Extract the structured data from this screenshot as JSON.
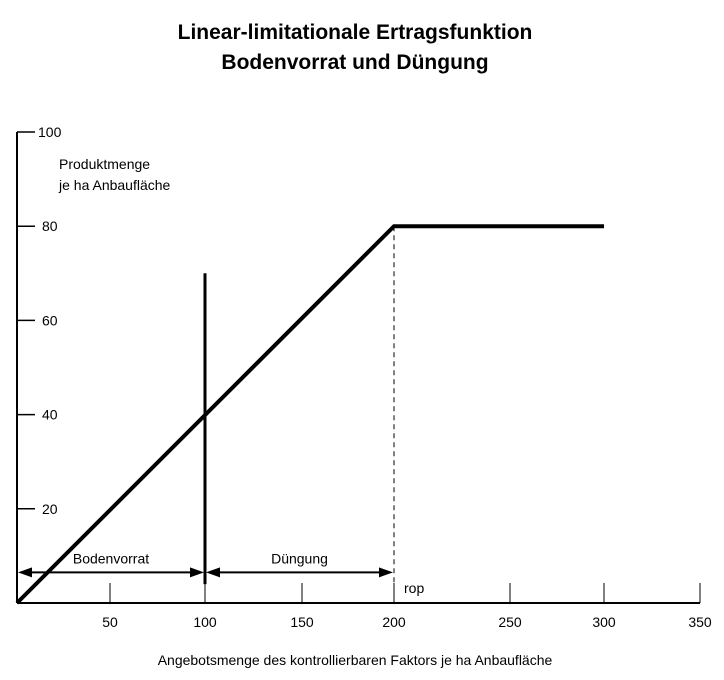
{
  "chart_data": {
    "type": "line",
    "title": [
      "Linear-limitationale Ertragsfunktion",
      "Bodenvorrat und Düngung"
    ],
    "xlabel": "Angebotsmenge des kontrollierbaren Faktors je ha Anbaufläche",
    "ylabel": [
      "Produktmenge",
      "je ha Anbaufläche"
    ],
    "xlim": [
      0,
      350
    ],
    "ylim": [
      0,
      100
    ],
    "x_ticks": [
      50,
      100,
      150,
      200,
      250,
      300,
      350
    ],
    "y_ticks": [
      20,
      40,
      60,
      80,
      100
    ],
    "grid": false,
    "series": [
      {
        "x": [
          0,
          200,
          300
        ],
        "y": [
          0,
          80,
          80
        ]
      }
    ],
    "annotations": {
      "vertical_line": {
        "x": 100,
        "y": [
          4,
          70
        ]
      },
      "dashed_line": {
        "x": 200,
        "y": [
          0,
          80
        ]
      },
      "ranges": [
        {
          "label": "Bodenvorrat",
          "from": 0,
          "to": 100,
          "y": 6.5
        },
        {
          "label": "Düngung",
          "from": 100,
          "to": 200,
          "y": 6.5
        }
      ],
      "point_label": {
        "label": "rop",
        "x": 200
      }
    }
  }
}
